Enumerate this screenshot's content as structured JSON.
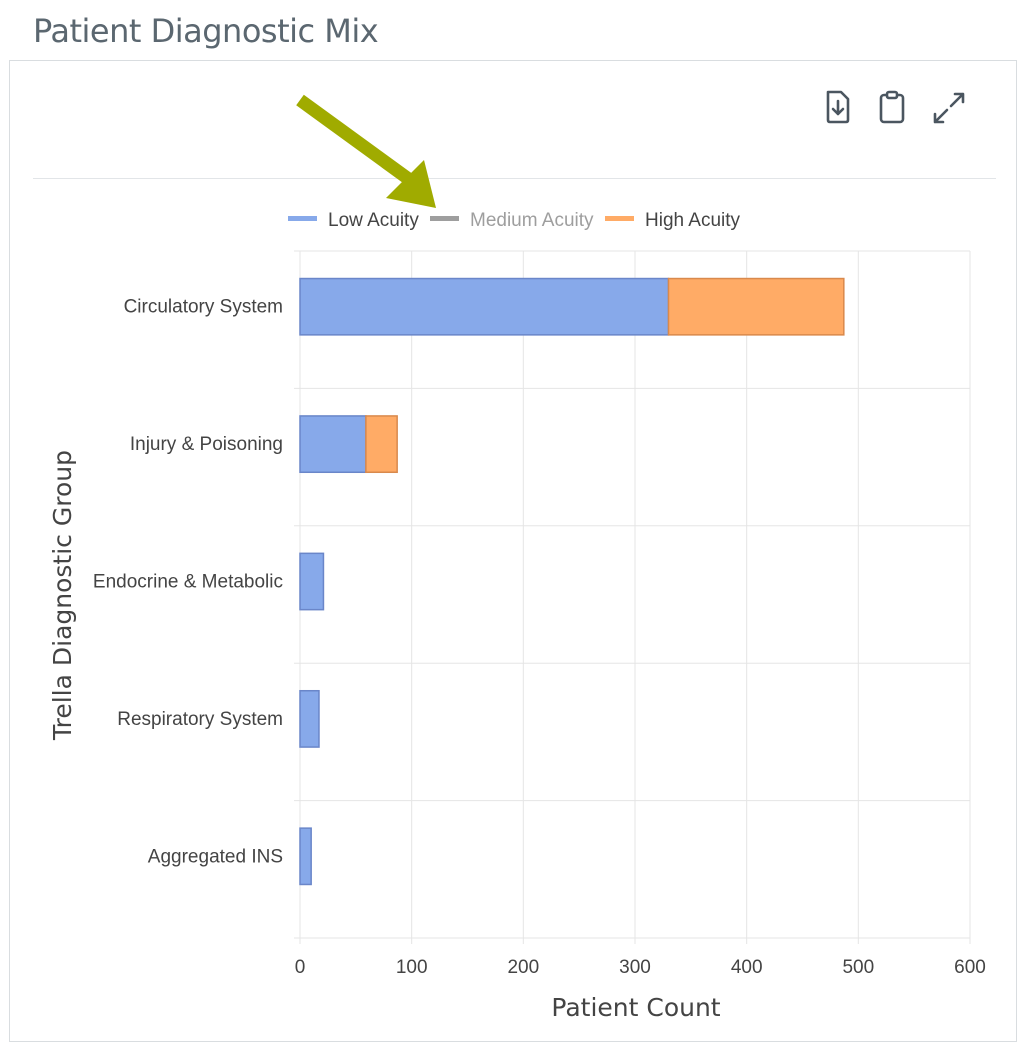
{
  "page": {
    "title": "Patient Diagnostic Mix"
  },
  "toolbar": {
    "icons": [
      "download-icon",
      "clipboard-icon",
      "expand-icon"
    ]
  },
  "annotation": {
    "icon": "arrow-icon",
    "color": "#a0ab00"
  },
  "colors": {
    "low": "#87a9ea",
    "low_stroke": "#6a86c9",
    "medium": "#9e9e9e",
    "high": "#ffab66",
    "high_stroke": "#d9894c",
    "grid": "#e5e5e5",
    "axis_text": "#444444",
    "legend_inactive": "#9e9e9e"
  },
  "chart_data": {
    "type": "bar",
    "orientation": "horizontal",
    "stacked": true,
    "title": "Patient Diagnostic Mix",
    "xlabel": "Patient Count",
    "ylabel": "Trella Diagnostic Group",
    "xlim": [
      0,
      600
    ],
    "xticks": [
      0,
      100,
      200,
      300,
      400,
      500,
      600
    ],
    "categories": [
      "Circulatory System",
      "Injury & Poisoning",
      "Endocrine & Metabolic",
      "Respiratory System",
      "Aggregated INS"
    ],
    "series": [
      {
        "name": "Low Acuity",
        "values": [
          330,
          59,
          21,
          17,
          10
        ],
        "hidden": false
      },
      {
        "name": "Medium Acuity",
        "values": [
          0,
          0,
          0,
          0,
          0
        ],
        "hidden": true
      },
      {
        "name": "High Acuity",
        "values": [
          157,
          28,
          0,
          0,
          0
        ],
        "hidden": false
      }
    ],
    "legend_position": "top",
    "grid": true
  }
}
